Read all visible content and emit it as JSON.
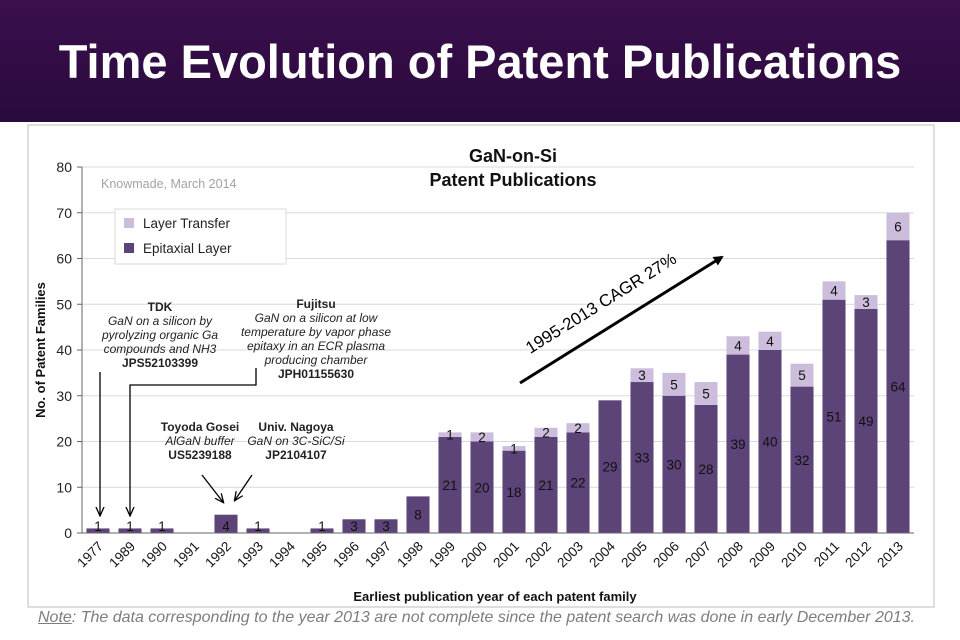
{
  "header": {
    "title": "Time Evolution of Patent Publications"
  },
  "footnote": {
    "note_word": "Note",
    "text": ": The data corresponding to the year 2013 are not complete since the patent search was done in early December 2013."
  },
  "colors": {
    "epitaxial": "#5c4478",
    "layer_transfer": "#cbbddb",
    "header_bg": "#2a0a3c",
    "frame": "#bcbcbc"
  },
  "chart_data": {
    "type": "bar",
    "title_line1": "GaN-on-Si",
    "title_line2": "Patent Publications",
    "source": "Knowmade, March 2014",
    "xlabel": "Earliest publication year of each patent family",
    "ylabel": "No. of Patent Families",
    "ylim": [
      0,
      80
    ],
    "yticks": [
      0,
      10,
      20,
      30,
      40,
      50,
      60,
      70,
      80
    ],
    "stacked": true,
    "legend_position": "top-left",
    "categories": [
      "1977",
      "1989",
      "1990",
      "1991",
      "1992",
      "1993",
      "1994",
      "1995",
      "1996",
      "1997",
      "1998",
      "1999",
      "2000",
      "2001",
      "2002",
      "2003",
      "2004",
      "2005",
      "2006",
      "2007",
      "2008",
      "2009",
      "2010",
      "2011",
      "2012",
      "2013"
    ],
    "series": [
      {
        "name": "Epitaxial Layer",
        "values": [
          1,
          1,
          1,
          0,
          4,
          1,
          0,
          1,
          3,
          3,
          8,
          21,
          20,
          18,
          21,
          22,
          29,
          33,
          30,
          28,
          39,
          40,
          32,
          51,
          49,
          64
        ]
      },
      {
        "name": "Layer Transfer",
        "values": [
          0,
          0,
          0,
          0,
          0,
          0,
          0,
          0,
          0,
          0,
          0,
          1,
          2,
          1,
          2,
          2,
          0,
          3,
          5,
          5,
          4,
          4,
          5,
          4,
          3,
          6
        ]
      }
    ],
    "trend_label": "1995-2013  CAGR  27%",
    "annotations": [
      {
        "company": "TDK",
        "description": "GaN on a silicon by pyrolyzing organic Ga compounds and NH3",
        "patent": "JPS52103399"
      },
      {
        "company": "Fujitsu",
        "description": "GaN on a silicon at low temperature by vapor phase epitaxy in an ECR plasma producing chamber",
        "patent": "JPH01155630"
      },
      {
        "company": "Toyoda Gosei",
        "description": "AlGaN buffer",
        "patent": "US5239188"
      },
      {
        "company": "Univ. Nagoya",
        "description": "GaN on 3C-SiC/Si",
        "patent": "JP2104107"
      }
    ]
  }
}
